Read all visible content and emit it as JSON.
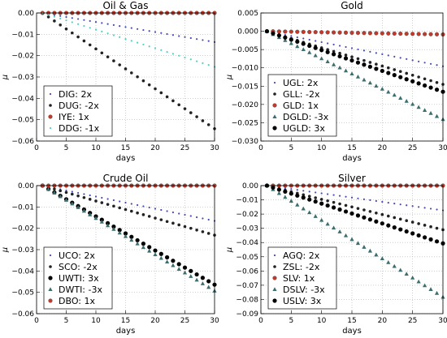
{
  "chart_data": [
    {
      "type": "scatter",
      "title": "Oil & Gas",
      "xlabel": "days",
      "ylabel": "μ",
      "xlim": [
        0,
        30
      ],
      "ylim": [
        -0.06,
        0.0
      ],
      "xticks": [
        "0",
        "5",
        "10",
        "15",
        "20",
        "25",
        "30"
      ],
      "yticks": [
        "0.00",
        "−0.01",
        "−0.02",
        "−0.03",
        "−0.04",
        "−0.05",
        "−0.06"
      ],
      "ytick_values": [
        0.0,
        -0.01,
        -0.02,
        -0.03,
        -0.04,
        -0.05,
        -0.06
      ],
      "grid": true,
      "legend": "bottom-left",
      "series": [
        {
          "name": "DIG: 2x",
          "slope": -0.00047,
          "color": "#4a4ab8",
          "marker": "dot"
        },
        {
          "name": "DUG: -2x",
          "slope": -0.00187,
          "color": "#222222",
          "marker": "dot-big"
        },
        {
          "name": "IYE: 1x",
          "slope": 0.0,
          "color": "#c0392b",
          "marker": "circle"
        },
        {
          "name": "DDG: -1x",
          "slope": -0.00087,
          "color": "#4fd1c5",
          "marker": "dot"
        }
      ]
    },
    {
      "type": "scatter",
      "title": "Gold",
      "xlabel": "days",
      "ylabel": "μ",
      "xlim": [
        0,
        30
      ],
      "ylim": [
        -0.03,
        0.005
      ],
      "xticks": [
        "0",
        "5",
        "10",
        "15",
        "20",
        "25",
        "30"
      ],
      "yticks": [
        "0.005",
        "0.000",
        "−0.005",
        "−0.010",
        "−0.015",
        "−0.020",
        "−0.025",
        "−0.030"
      ],
      "ytick_values": [
        0.005,
        0.0,
        -0.005,
        -0.01,
        -0.015,
        -0.02,
        -0.025,
        -0.03
      ],
      "grid": true,
      "legend": "bottom-left",
      "series": [
        {
          "name": "UGL: 2x",
          "slope": -0.00033,
          "color": "#4a4ab8",
          "marker": "dot"
        },
        {
          "name": "GLL: -2x",
          "slope": -0.0005,
          "color": "#222222",
          "marker": "dot-big"
        },
        {
          "name": "GLD: 1x",
          "slope": -3e-05,
          "color": "#c0392b",
          "marker": "circle"
        },
        {
          "name": "DGLD: -3x",
          "slope": -0.00083,
          "color": "#3c6e6e",
          "marker": "triangle"
        },
        {
          "name": "UGLD: 3x",
          "slope": -0.00057,
          "color": "#000000",
          "marker": "circle-big"
        }
      ]
    },
    {
      "type": "scatter",
      "title": "Crude Oil",
      "xlabel": "days",
      "ylabel": "μ",
      "xlim": [
        0,
        30
      ],
      "ylim": [
        -0.06,
        0.0
      ],
      "xticks": [
        "0",
        "5",
        "10",
        "15",
        "20",
        "25",
        "30"
      ],
      "yticks": [
        "0.00",
        "−0.01",
        "−0.02",
        "−0.03",
        "−0.04",
        "−0.05",
        "−0.06"
      ],
      "ytick_values": [
        0.0,
        -0.01,
        -0.02,
        -0.03,
        -0.04,
        -0.05,
        -0.06
      ],
      "grid": true,
      "legend": "bottom-left",
      "series": [
        {
          "name": "UCO: 2x",
          "slope": -0.00057,
          "color": "#4a4ab8",
          "marker": "dot"
        },
        {
          "name": "SCO: -2x",
          "slope": -0.0008,
          "color": "#222222",
          "marker": "dot-big"
        },
        {
          "name": "UWTI: 3x",
          "slope": -0.0016,
          "color": "#000000",
          "marker": "circle-big"
        },
        {
          "name": "DWTI: -3x",
          "slope": -0.0017,
          "color": "#3c6e6e",
          "marker": "triangle"
        },
        {
          "name": "DBO: 1x",
          "slope": 0.0,
          "color": "#c0392b",
          "marker": "circle"
        }
      ]
    },
    {
      "type": "scatter",
      "title": "Silver",
      "xlabel": "days",
      "ylabel": "μ",
      "xlim": [
        0,
        30
      ],
      "ylim": [
        -0.09,
        0.0
      ],
      "xticks": [
        "0",
        "5",
        "10",
        "15",
        "20",
        "25",
        "30"
      ],
      "yticks": [
        "0.00",
        "−0.01",
        "−0.02",
        "−0.03",
        "−0.04",
        "−0.05",
        "−0.06",
        "−0.07",
        "−0.08",
        "−0.09"
      ],
      "ytick_values": [
        0.0,
        -0.01,
        -0.02,
        -0.03,
        -0.04,
        -0.05,
        -0.06,
        -0.07,
        -0.08,
        -0.09
      ],
      "grid": true,
      "legend": "bottom-left",
      "series": [
        {
          "name": "AGQ: 2x",
          "slope": -0.0006,
          "color": "#4a4ab8",
          "marker": "dot"
        },
        {
          "name": "ZSL: -2x",
          "slope": -0.00107,
          "color": "#222222",
          "marker": "dot-big"
        },
        {
          "name": "SLV: 1x",
          "slope": 0.0,
          "color": "#c0392b",
          "marker": "circle"
        },
        {
          "name": "DSLV: -3x",
          "slope": -0.0027,
          "color": "#3c6e6e",
          "marker": "triangle"
        },
        {
          "name": "USLV: 3x",
          "slope": -0.0014,
          "color": "#000000",
          "marker": "circle-big"
        }
      ]
    }
  ]
}
